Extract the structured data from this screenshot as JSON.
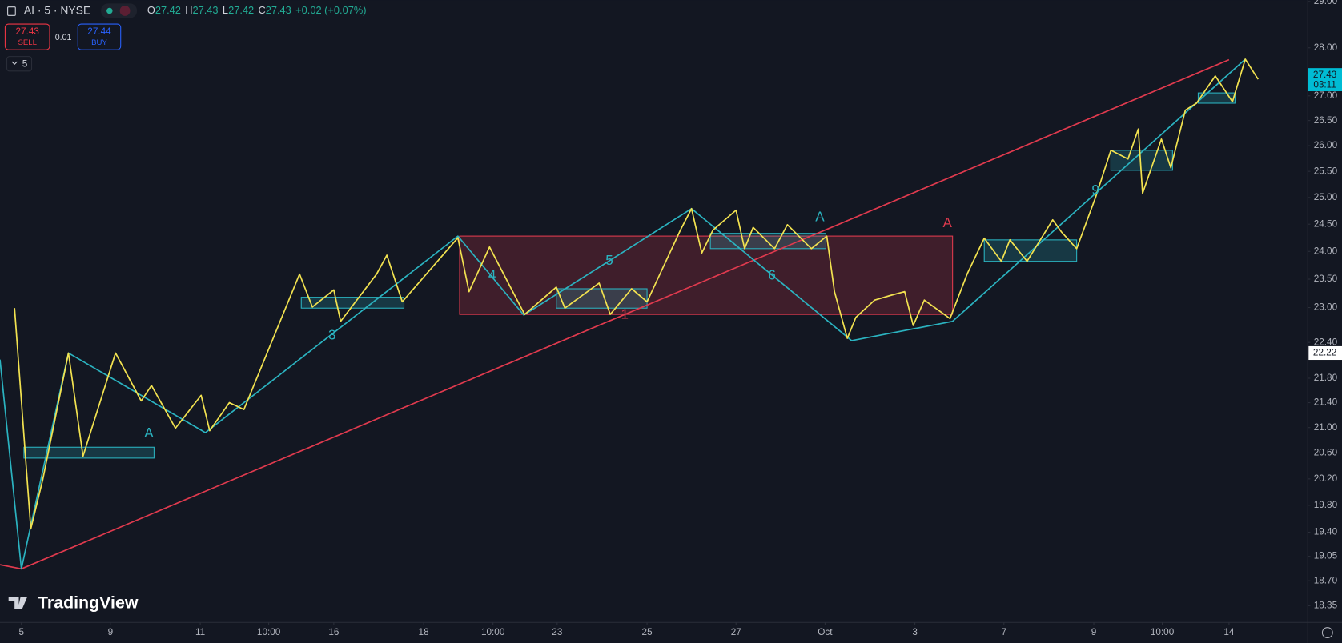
{
  "header": {
    "symbol": "AI · 5 · NYSE",
    "ohlc": [
      {
        "key": "O",
        "value": 27.42
      },
      {
        "key": "H",
        "value": 27.43
      },
      {
        "key": "L",
        "value": 27.42
      },
      {
        "key": "C",
        "value": 27.43
      }
    ],
    "change": "+0.02 (+0.07%)",
    "sell": {
      "price": 27.43,
      "label": "SELL"
    },
    "spread": 0.01,
    "buy": {
      "price": 27.44,
      "label": "BUY"
    },
    "interval": "5",
    "logo": "TradingView"
  },
  "chart_data": {
    "type": "line",
    "log_scale": true,
    "grid": false,
    "xlim": [
      0,
      1528
    ],
    "ylim": [
      18.12,
      29.03
    ],
    "xticks": [
      {
        "value": 25,
        "label": "5"
      },
      {
        "value": 129,
        "label": "9"
      },
      {
        "value": 234,
        "label": "11"
      },
      {
        "value": 314,
        "label": "10:00"
      },
      {
        "value": 390,
        "label": "16"
      },
      {
        "value": 495,
        "label": "18"
      },
      {
        "value": 576,
        "label": "10:00"
      },
      {
        "value": 651,
        "label": "23"
      },
      {
        "value": 756,
        "label": "25"
      },
      {
        "value": 860,
        "label": "27"
      },
      {
        "value": 964,
        "label": "Oct"
      },
      {
        "value": 1069,
        "label": "3"
      },
      {
        "value": 1173,
        "label": "7"
      },
      {
        "value": 1278,
        "label": "9"
      },
      {
        "value": 1358,
        "label": "10:00"
      },
      {
        "value": 1436,
        "label": "14"
      }
    ],
    "yticks": [
      {
        "value": 29,
        "label": "29.00"
      },
      {
        "value": 28,
        "label": "28.00"
      },
      {
        "value": 27,
        "label": "27.00"
      },
      {
        "value": 26.5,
        "label": "26.50"
      },
      {
        "value": 26,
        "label": "26.00"
      },
      {
        "value": 25.5,
        "label": "25.50"
      },
      {
        "value": 25,
        "label": "25.00"
      },
      {
        "value": 24.5,
        "label": "24.50"
      },
      {
        "value": 24,
        "label": "24.00"
      },
      {
        "value": 23.5,
        "label": "23.50"
      },
      {
        "value": 23,
        "label": "23.00"
      },
      {
        "value": 22.4,
        "label": "22.40"
      },
      {
        "value": 21.8,
        "label": "21.80"
      },
      {
        "value": 21.4,
        "label": "21.40"
      },
      {
        "value": 21,
        "label": "21.00"
      },
      {
        "value": 20.6,
        "label": "20.60"
      },
      {
        "value": 20.2,
        "label": "20.20"
      },
      {
        "value": 19.8,
        "label": "19.80"
      },
      {
        "value": 19.4,
        "label": "19.40"
      },
      {
        "value": 19.05,
        "label": "19.05"
      },
      {
        "value": 18.7,
        "label": "18.70"
      },
      {
        "value": 18.35,
        "label": "18.35"
      }
    ],
    "series": [
      {
        "color": "#e03a4e",
        "x": [
          0,
          25,
          1436
        ],
        "values": [
          18.93,
          18.87,
          27.75
        ]
      },
      {
        "color": "#2bb3c0",
        "x": [
          0,
          25,
          80,
          240,
          535,
          612,
          808,
          995,
          1113,
          1455
        ],
        "values": [
          22.11,
          18.87,
          22.22,
          20.92,
          24.28,
          22.87,
          24.79,
          22.43,
          22.76,
          27.76
        ]
      },
      {
        "color": "#f2e250",
        "x": [
          17,
          36,
          50,
          80,
          97,
          135,
          165,
          177,
          205,
          235,
          245,
          268,
          285,
          350,
          365,
          390,
          398,
          440,
          452,
          470,
          535,
          548,
          572,
          613,
          650,
          660,
          700,
          713,
          738,
          756,
          795,
          808,
          820,
          833,
          860,
          870,
          880,
          905,
          920,
          948,
          966,
          975,
          990,
          1000,
          1022,
          1040,
          1057,
          1067,
          1080,
          1110,
          1130,
          1150,
          1170,
          1180,
          1200,
          1230,
          1240,
          1258,
          1280,
          1298,
          1318,
          1330,
          1335,
          1357,
          1368,
          1385,
          1398,
          1420,
          1440,
          1455,
          1470
        ],
        "values": [
          22.99,
          19.45,
          20.19,
          22.22,
          20.55,
          22.22,
          21.43,
          21.68,
          20.99,
          21.52,
          20.95,
          21.4,
          21.29,
          23.59,
          23.01,
          23.31,
          22.76,
          23.59,
          23.93,
          23.1,
          24.25,
          23.28,
          24.08,
          22.88,
          23.36,
          22.99,
          23.43,
          22.88,
          23.33,
          23.1,
          24.39,
          24.79,
          23.97,
          24.39,
          24.76,
          24.05,
          24.44,
          24.05,
          24.49,
          24.05,
          24.28,
          23.28,
          22.47,
          22.83,
          23.13,
          23.21,
          23.28,
          22.69,
          23.13,
          22.81,
          23.59,
          24.24,
          23.82,
          24.21,
          23.82,
          24.58,
          24.36,
          24.05,
          25.0,
          25.91,
          25.74,
          26.33,
          25.08,
          26.13,
          25.57,
          26.71,
          26.85,
          27.41,
          26.88,
          27.76,
          27.34
        ]
      }
    ],
    "boxes": [
      {
        "color": "#e03a4e",
        "x": [
          537,
          1113
        ],
        "y": [
          24.28,
          22.88
        ]
      },
      {
        "color": "#2bb3c0",
        "x": [
          28,
          180
        ],
        "y": [
          20.69,
          20.52
        ]
      },
      {
        "color": "#2bb3c0",
        "x": [
          352,
          472
        ],
        "y": [
          23.18,
          22.99
        ]
      },
      {
        "color": "#2bb3c0",
        "x": [
          650,
          756
        ],
        "y": [
          23.33,
          22.99
        ]
      },
      {
        "color": "#2bb3c0",
        "x": [
          830,
          965
        ],
        "y": [
          24.33,
          24.05
        ]
      },
      {
        "color": "#2bb3c0",
        "x": [
          1150,
          1258
        ],
        "y": [
          24.21,
          23.82
        ]
      },
      {
        "color": "#2bb3c0",
        "x": [
          1298,
          1370
        ],
        "y": [
          25.91,
          25.52
        ]
      },
      {
        "color": "#2bb3c0",
        "x": [
          1400,
          1443
        ],
        "y": [
          27.06,
          26.85
        ]
      }
    ],
    "annotations": [
      {
        "text": "A",
        "x": 174,
        "y": 20.9,
        "color": "#2bb3c0"
      },
      {
        "text": "A",
        "x": 958,
        "y": 24.62,
        "color": "#2bb3c0"
      },
      {
        "text": "A",
        "x": 1107,
        "y": 24.51,
        "color": "#e03a4e"
      },
      {
        "text": "3",
        "x": 388,
        "y": 22.51,
        "color": "#2bb3c0"
      },
      {
        "text": "4",
        "x": 575,
        "y": 23.56,
        "color": "#2bb3c0"
      },
      {
        "text": "5",
        "x": 712,
        "y": 23.82,
        "color": "#2bb3c0"
      },
      {
        "text": "6",
        "x": 902,
        "y": 23.56,
        "color": "#2bb3c0"
      },
      {
        "text": "1",
        "x": 730,
        "y": 22.87,
        "color": "#e03a4e"
      },
      {
        "text": "9",
        "x": 1280,
        "y": 25.13,
        "color": "#2bb3c0"
      }
    ],
    "hline": {
      "value": 22.22,
      "label": "22.22",
      "x_start": 80
    },
    "last_price": {
      "value": 27.43,
      "label": "27.43",
      "countdown": "03:11"
    }
  }
}
